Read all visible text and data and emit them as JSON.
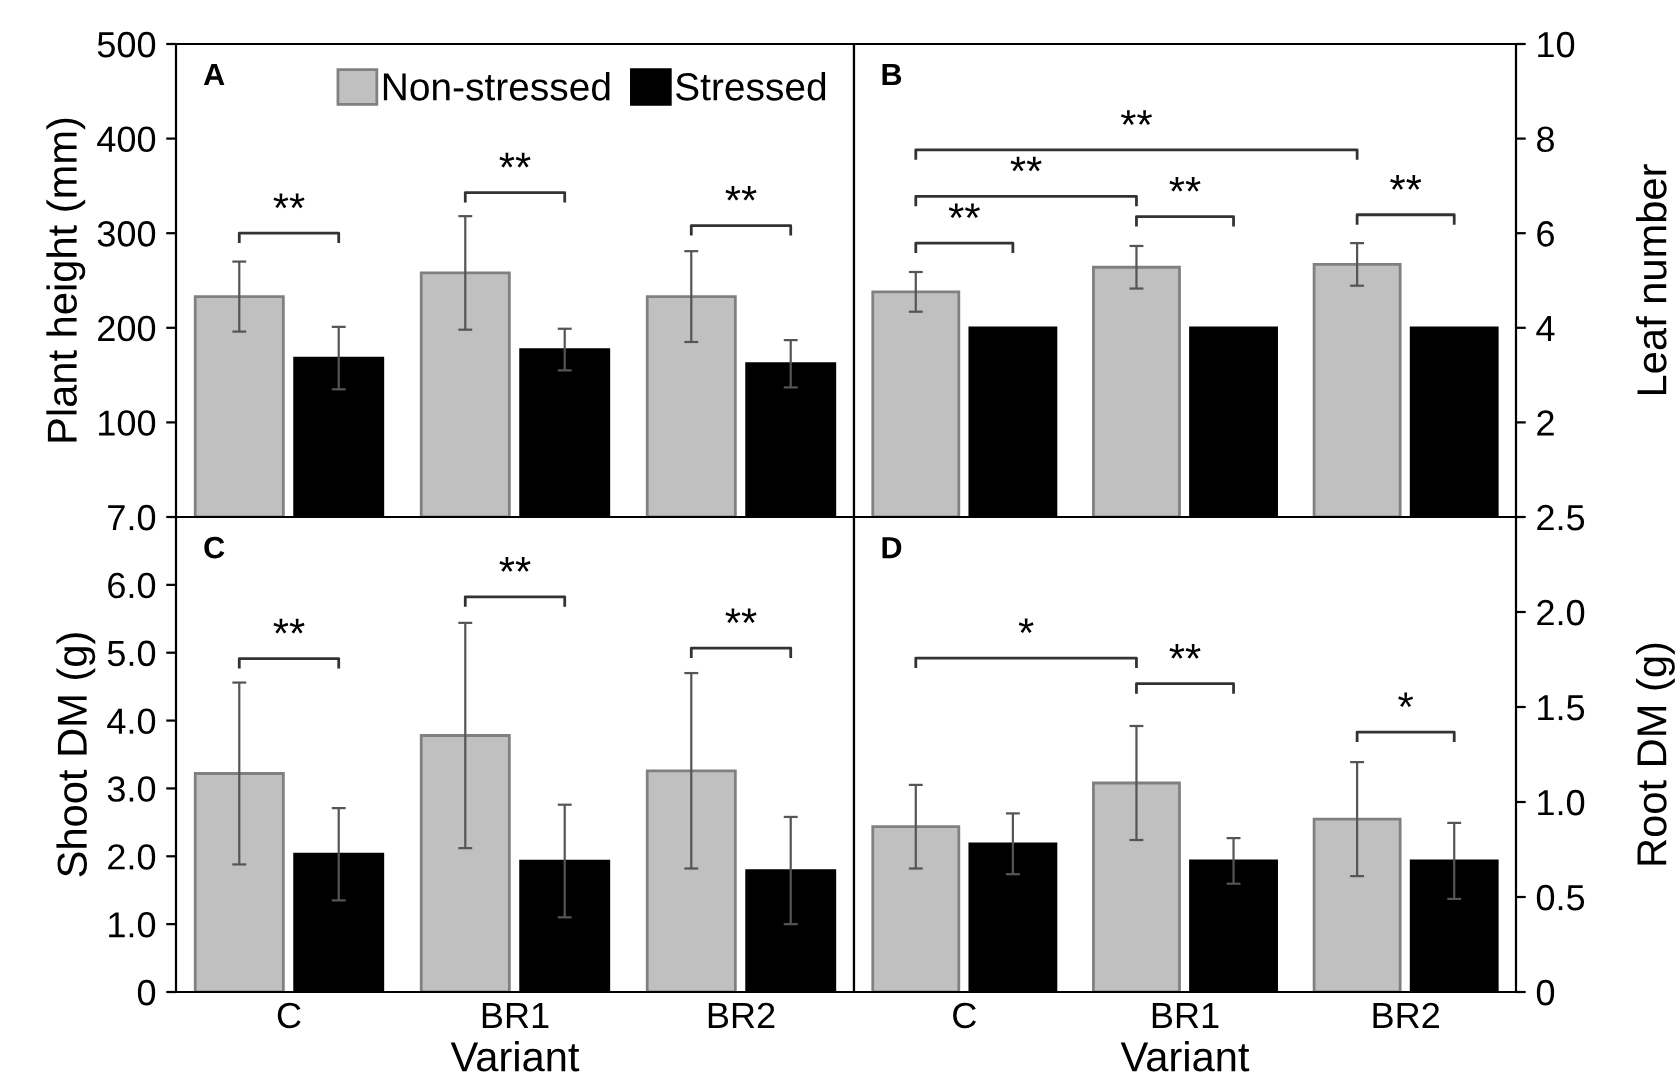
{
  "chart_data": [
    {
      "type": "bar",
      "annotations": [
        "A",
        "**",
        "**",
        "**"
      ],
      "ylabel": "Plant height (mm)",
      "categories": [
        null,
        null,
        null
      ],
      "ylim": [
        0,
        500
      ],
      "yticks": [
        100,
        200,
        300,
        400,
        500
      ],
      "tick_labels": "y",
      "legend": "top",
      "series": [
        {
          "name": "Non-stressed",
          "color": "#c0c0c0",
          "values": [
            233,
            258,
            233
          ],
          "errors": [
            37,
            60,
            48
          ]
        },
        {
          "name": "Stressed",
          "color": "#000000",
          "values": [
            168,
            177,
            162
          ],
          "errors": [
            33,
            22,
            25
          ]
        }
      ]
    },
    {
      "type": "bar",
      "annotations": [
        "B",
        "**",
        "**",
        "**",
        "**",
        "**"
      ],
      "ylabel": "Leaf number",
      "categories": [
        null,
        null,
        null
      ],
      "ylim": [
        0,
        10
      ],
      "yticks": [
        2,
        4,
        6,
        8,
        10
      ],
      "tick_labels": "y",
      "series": [
        {
          "color": "#c0c0c0",
          "values": [
            4.76,
            5.28,
            5.34
          ],
          "errors": [
            0.42,
            0.45,
            0.45
          ]
        },
        {
          "color": "#000000",
          "values": [
            4.0,
            4.0,
            4.0
          ]
        }
      ]
    },
    {
      "type": "bar",
      "annotations": [
        "C",
        "**",
        "**",
        "**"
      ],
      "ylabel": "Shoot DM (g)",
      "xlabel": "Variant",
      "categories": [
        "C",
        "BR1",
        "BR2"
      ],
      "ylim": [
        0,
        7
      ],
      "yticks": [
        0,
        {
          "value": 1,
          "label": "1.0"
        },
        {
          "value": 2,
          "label": "2.0"
        },
        {
          "value": 3,
          "label": "3.0"
        },
        {
          "value": 4,
          "label": "4.0"
        },
        {
          "value": 5,
          "label": "5.0"
        },
        {
          "value": 6,
          "label": "6.0"
        },
        {
          "value": 7,
          "label": "7.0"
        }
      ],
      "series": [
        {
          "color": "#c0c0c0",
          "values": [
            3.22,
            3.78,
            3.26
          ],
          "errors": [
            1.34,
            1.66,
            1.44
          ]
        },
        {
          "color": "#000000",
          "values": [
            2.03,
            1.93,
            1.79
          ],
          "errors": [
            0.68,
            0.83,
            0.79
          ]
        }
      ]
    },
    {
      "type": "bar",
      "annotations": [
        "D",
        "*",
        "**",
        "*"
      ],
      "ylabel": "Root DM (g)",
      "xlabel": "Variant",
      "categories": [
        "C",
        "BR1",
        "BR2"
      ],
      "ylim": [
        0,
        2.5
      ],
      "yticks": [
        0,
        0.5,
        {
          "value": 1,
          "label": "1.0"
        },
        1.5,
        {
          "value": 2,
          "label": "2.0"
        },
        2.5
      ],
      "series": [
        {
          "color": "#c0c0c0",
          "values": [
            0.87,
            1.1,
            0.91
          ],
          "errors": [
            0.22,
            0.3,
            0.3
          ]
        },
        {
          "color": "#000000",
          "values": [
            0.78,
            0.69,
            0.69
          ],
          "errors": [
            0.16,
            0.12,
            0.2
          ]
        }
      ]
    }
  ]
}
